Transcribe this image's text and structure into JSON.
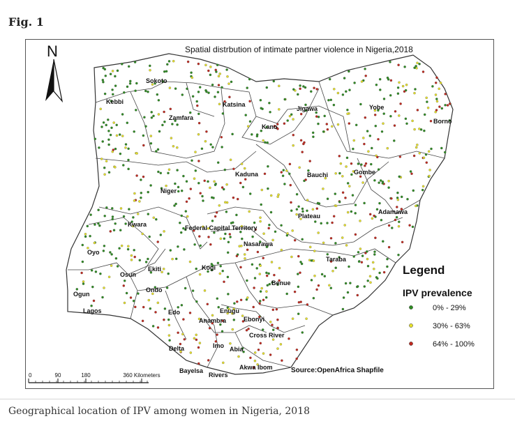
{
  "figure": {
    "label": "Fig. 1",
    "caption": "Geographical location of IPV among women in Nigeria, 2018"
  },
  "map": {
    "title": "Spatial distrbution of intimate partner violence in Nigeria,2018",
    "north_label": "N",
    "source": "Source:OpenAfrica Shapfile",
    "scale_bar": {
      "ticks": [
        "0",
        "90",
        "180",
        "360 Kilometers"
      ]
    },
    "legend": {
      "title": "Legend",
      "subtitle": "IPV prevalence",
      "items": [
        {
          "label": "0% - 29%",
          "color": "#2e8b22"
        },
        {
          "label": "30% - 63%",
          "color": "#e6e02a"
        },
        {
          "label": "64% - 100%",
          "color": "#c0281e"
        }
      ]
    },
    "states": [
      "Sokoto",
      "Kebbi",
      "Zamfara",
      "Katsina",
      "Kano",
      "Jigawa",
      "Yobe",
      "Borno",
      "Kaduna",
      "Bauchi",
      "Gombe",
      "Niger",
      "Adamawa",
      "Plateau",
      "Kwara",
      "Federal Capital Territory",
      "Nasarawa",
      "Oyo",
      "Ekiti",
      "Osun",
      "Kogi",
      "Taraba",
      "Ondo",
      "Ogun",
      "Lagos",
      "Benue",
      "Edo",
      "Enugu",
      "Anambra",
      "Ebonyi",
      "Cross River",
      "Imo",
      "Abia",
      "Delta",
      "Akwa Ibom",
      "Bayelsa",
      "Rivers"
    ]
  }
}
